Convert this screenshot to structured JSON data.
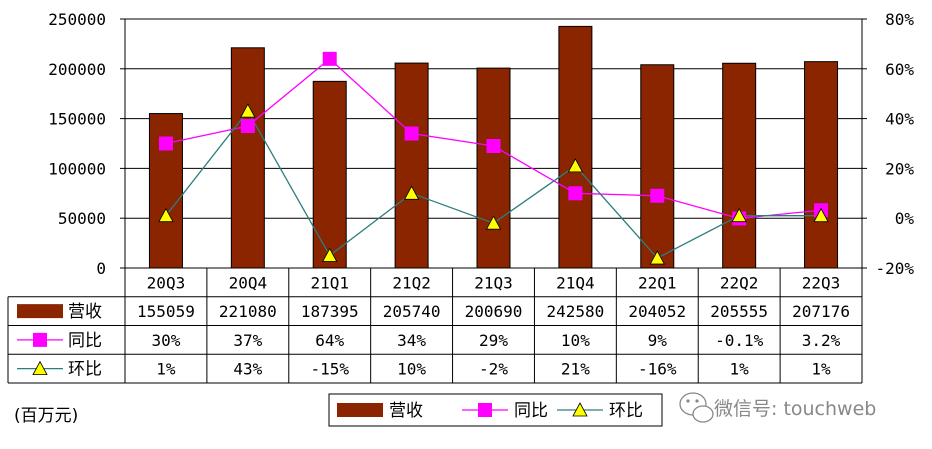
{
  "chart_data": {
    "type": "bar",
    "categories": [
      "20Q3",
      "20Q4",
      "21Q1",
      "21Q2",
      "21Q3",
      "21Q4",
      "22Q1",
      "22Q2",
      "22Q3"
    ],
    "series": [
      {
        "name": "营收",
        "type": "bar",
        "axis": "left",
        "color": "#8B2500",
        "values": [
          155059,
          221080,
          187395,
          205740,
          200690,
          242580,
          204052,
          205555,
          207176
        ],
        "labels": [
          "155059",
          "221080",
          "187395",
          "205740",
          "200690",
          "242580",
          "204052",
          "205555",
          "207176"
        ]
      },
      {
        "name": "同比",
        "type": "line",
        "axis": "right",
        "color": "#FF00FF",
        "marker": "square",
        "values": [
          30,
          37,
          64,
          34,
          29,
          10,
          9,
          -0.1,
          3.2
        ],
        "labels": [
          "30%",
          "37%",
          "64%",
          "34%",
          "29%",
          "10%",
          "9%",
          "-0.1%",
          "3.2%"
        ]
      },
      {
        "name": "环比",
        "type": "line",
        "axis": "right",
        "color": "#2E7D7D",
        "marker": "triangle",
        "marker_color": "#FFFF00",
        "values": [
          1,
          43,
          -15,
          10,
          -2,
          21,
          -16,
          1,
          1
        ],
        "labels": [
          "1%",
          "43%",
          "-15%",
          "10%",
          "-2%",
          "21%",
          "-16%",
          "1%",
          "1%"
        ]
      }
    ],
    "ylim_left": [
      0,
      250000
    ],
    "ylim_right": [
      -20,
      80
    ],
    "yticks_left": [
      "0",
      "50000",
      "100000",
      "150000",
      "200000",
      "250000"
    ],
    "yticks_right": [
      "-20%",
      "0%",
      "20%",
      "40%",
      "60%",
      "80%"
    ],
    "grid": true,
    "unit_note": "(百万元)",
    "legend": [
      "营收",
      "同比",
      "环比"
    ],
    "watermark": "微信号: touchweb"
  }
}
